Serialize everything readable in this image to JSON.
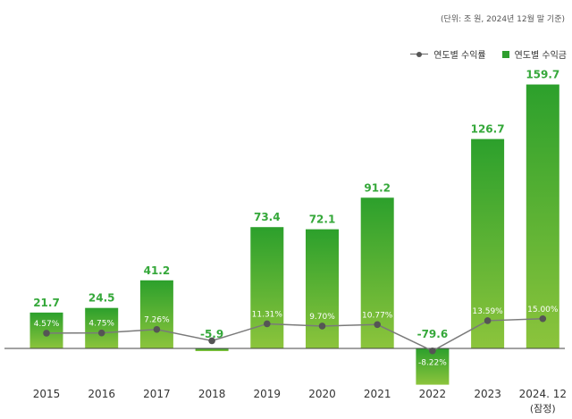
{
  "unit_note": "(단위: 조 원, 2024년 12월 말 기준)",
  "legend": {
    "line_label": "연도별 수익률",
    "bar_label": "연도별 수익금"
  },
  "colors": {
    "bar_top": "#2ca02c",
    "bar_bottom": "#8cc43c",
    "value_label": "#35a83a",
    "line": "#7a7a7a",
    "marker": "#555555",
    "baseline": "#444444",
    "rate_label": "#ffffff"
  },
  "chart_data": {
    "type": "bar",
    "title": "",
    "xlabel": "",
    "ylabel": "",
    "categories": [
      "2015",
      "2016",
      "2017",
      "2018",
      "2019",
      "2020",
      "2021",
      "2022",
      "2023",
      "2024. 12"
    ],
    "category_sublabels": [
      "",
      "",
      "",
      "",
      "",
      "",
      "",
      "",
      "",
      "(잠정)"
    ],
    "series": [
      {
        "name": "연도별 수익금",
        "type": "bar",
        "values": [
          21.7,
          24.5,
          41.2,
          -5.9,
          73.4,
          72.1,
          91.2,
          -79.6,
          126.7,
          159.7
        ],
        "labels": [
          "21.7",
          "24.5",
          "41.2",
          "-5.9",
          "73.4",
          "72.1",
          "91.2",
          "-79.6",
          "126.7",
          "159.7"
        ]
      },
      {
        "name": "연도별 수익률",
        "type": "line",
        "values": [
          4.57,
          4.75,
          7.26,
          -0.92,
          11.31,
          9.7,
          10.77,
          -8.22,
          13.59,
          15.0
        ],
        "labels": [
          "4.57%",
          "4.75%",
          "7.26%",
          "",
          "11.31%",
          "9.70%",
          "10.77%",
          "-8.22%",
          "13.59%",
          "15.00%"
        ]
      }
    ],
    "grid": false,
    "legend_position": "top-right"
  }
}
